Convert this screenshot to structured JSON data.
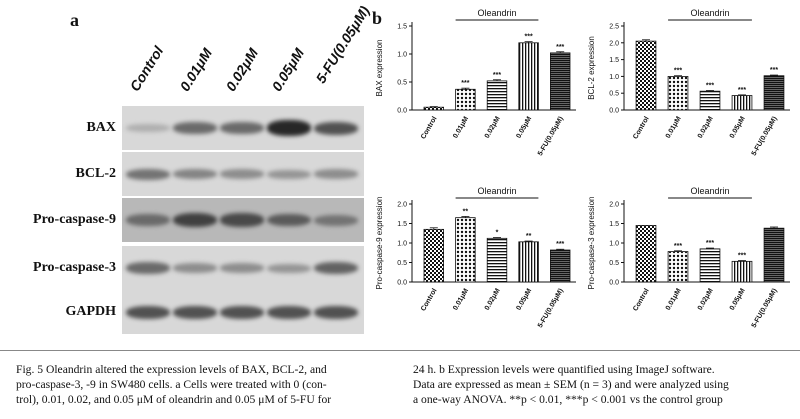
{
  "panel_a_label": "a",
  "panel_b_label": "b",
  "blot": {
    "columns": [
      "Control",
      "0.01μM",
      "0.02μM",
      "0.05μM",
      "5-FU(0.05μM)"
    ],
    "rows": [
      {
        "label": "BAX",
        "intensity": [
          0.15,
          0.55,
          0.55,
          0.95,
          0.7
        ]
      },
      {
        "label": "BCL-2",
        "intensity": [
          0.5,
          0.4,
          0.35,
          0.3,
          0.35
        ]
      },
      {
        "label": "Pro-caspase-9",
        "intensity": [
          0.55,
          0.8,
          0.75,
          0.65,
          0.5
        ]
      },
      {
        "label": "Pro-caspase-3",
        "intensity": [
          0.55,
          0.35,
          0.35,
          0.3,
          0.6
        ]
      },
      {
        "label": "GAPDH",
        "intensity": [
          0.7,
          0.7,
          0.7,
          0.7,
          0.7
        ]
      }
    ]
  },
  "chart_data": [
    {
      "type": "bar",
      "ylabel": "BAX expression",
      "categories": [
        "Control",
        "0.01μM",
        "0.02μM",
        "0.05μM",
        "5-FU(0.05μM)"
      ],
      "values": [
        0.05,
        0.37,
        0.52,
        1.2,
        1.02
      ],
      "errors": [
        0.01,
        0.02,
        0.02,
        0.02,
        0.02
      ],
      "significance": [
        "",
        "***",
        "***",
        "***",
        "***"
      ],
      "ylim": [
        0,
        1.5
      ],
      "yticks": [
        "0.0",
        "0.5",
        "1.0",
        "1.5"
      ],
      "bracket_label": "Oleandrin",
      "bracket_span": [
        1,
        3
      ]
    },
    {
      "type": "bar",
      "ylabel": "BCL-2  expression",
      "categories": [
        "Control",
        "0.01μM",
        "0.02μM",
        "0.05μM",
        "5-FU(0.05μM)"
      ],
      "values": [
        2.05,
        1.0,
        0.56,
        0.43,
        1.02
      ],
      "errors": [
        0.04,
        0.02,
        0.02,
        0.02,
        0.02
      ],
      "significance": [
        "",
        "***",
        "***",
        "***",
        "***"
      ],
      "ylim": [
        0,
        2.5
      ],
      "yticks": [
        "0.0",
        "0.5",
        "1.0",
        "1.5",
        "2.0",
        "2.5"
      ],
      "bracket_label": "Oleandrin",
      "bracket_span": [
        1,
        3
      ]
    },
    {
      "type": "bar",
      "ylabel": "Pro-caspase-9 expression",
      "categories": [
        "Control",
        "0.01μM",
        "0.02μM",
        "0.05μM",
        "5-FU(0.05μM)"
      ],
      "values": [
        1.35,
        1.65,
        1.12,
        1.03,
        0.82
      ],
      "errors": [
        0.04,
        0.03,
        0.02,
        0.02,
        0.02
      ],
      "significance": [
        "",
        "**",
        "*",
        "**",
        "***"
      ],
      "ylim": [
        0,
        2.0
      ],
      "yticks": [
        "0.0",
        "0.5",
        "1.0",
        "1.5",
        "2.0"
      ],
      "bracket_label": "Oleandrin",
      "bracket_span": [
        1,
        3
      ]
    },
    {
      "type": "bar",
      "ylabel": "Pro-caspase-3 expression",
      "categories": [
        "Control",
        "0.01μM",
        "0.02μM",
        "0.05μM",
        "5-FU(0.05μM)"
      ],
      "values": [
        1.45,
        0.78,
        0.85,
        0.53,
        1.38
      ],
      "errors": [
        0.0,
        0.02,
        0.02,
        0.02,
        0.03
      ],
      "significance": [
        "",
        "***",
        "***",
        "***",
        ""
      ],
      "ylim": [
        0,
        2.0
      ],
      "yticks": [
        "0.0",
        "0.5",
        "1.0",
        "1.5",
        "2.0"
      ],
      "bracket_label": "Oleandrin",
      "bracket_span": [
        1,
        3
      ]
    }
  ],
  "caption": {
    "left_lines": [
      "Fig. 5  Oleandrin altered the expression levels of BAX, BCL-2, and",
      "pro-caspase-3, -9 in SW480 cells. a Cells were treated with 0 (con-",
      "trol), 0.01, 0.02, and 0.05 μM of oleandrin and 0.05 μM of 5-FU for"
    ],
    "right_lines": [
      "24 h. b Expression levels were quantified using ImageJ software.",
      "Data are expressed as mean ± SEM (n = 3) and were analyzed using",
      "a one-way ANOVA. **p < 0.01, ***p < 0.001 vs the control group"
    ]
  }
}
